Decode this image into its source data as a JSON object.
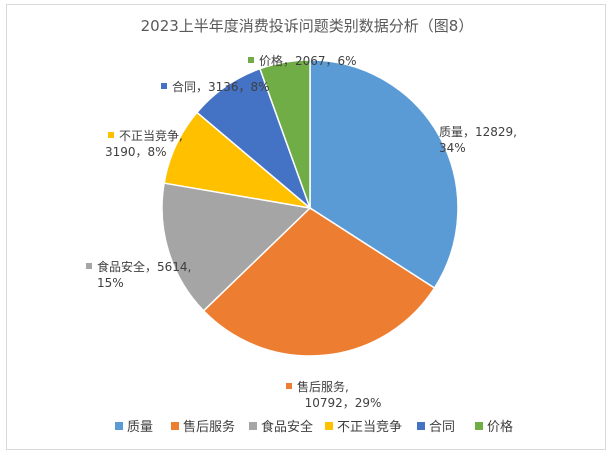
{
  "chart_data": {
    "type": "pie",
    "title": "2023上半年度消费投诉问题类别数据分析（图8）",
    "categories": [
      "质量",
      "售后服务",
      "食品安全",
      "不正当竞争",
      "合同",
      "价格"
    ],
    "values": [
      12829,
      10792,
      5614,
      3190,
      3136,
      2067
    ],
    "percents": [
      "34%",
      "29%",
      "15%",
      "8%",
      "8%",
      "6%"
    ],
    "colors": [
      "#5b9bd5",
      "#ed7d31",
      "#a5a5a5",
      "#ffc000",
      "#4472c4",
      "#70ad47"
    ],
    "data_labels": [
      {
        "line1": "质量，12829,",
        "line2": "34%"
      },
      {
        "line1": "售后服务,",
        "line2": "10792，29%"
      },
      {
        "line1": "食品安全，5614,",
        "line2": "15%"
      },
      {
        "line1": "不正当竞争,",
        "line2": "3190，8%"
      },
      {
        "line1": "合同，3136，8%",
        "line2": ""
      },
      {
        "line1": "价格，2067，6%",
        "line2": ""
      }
    ],
    "legend_position": "bottom"
  }
}
